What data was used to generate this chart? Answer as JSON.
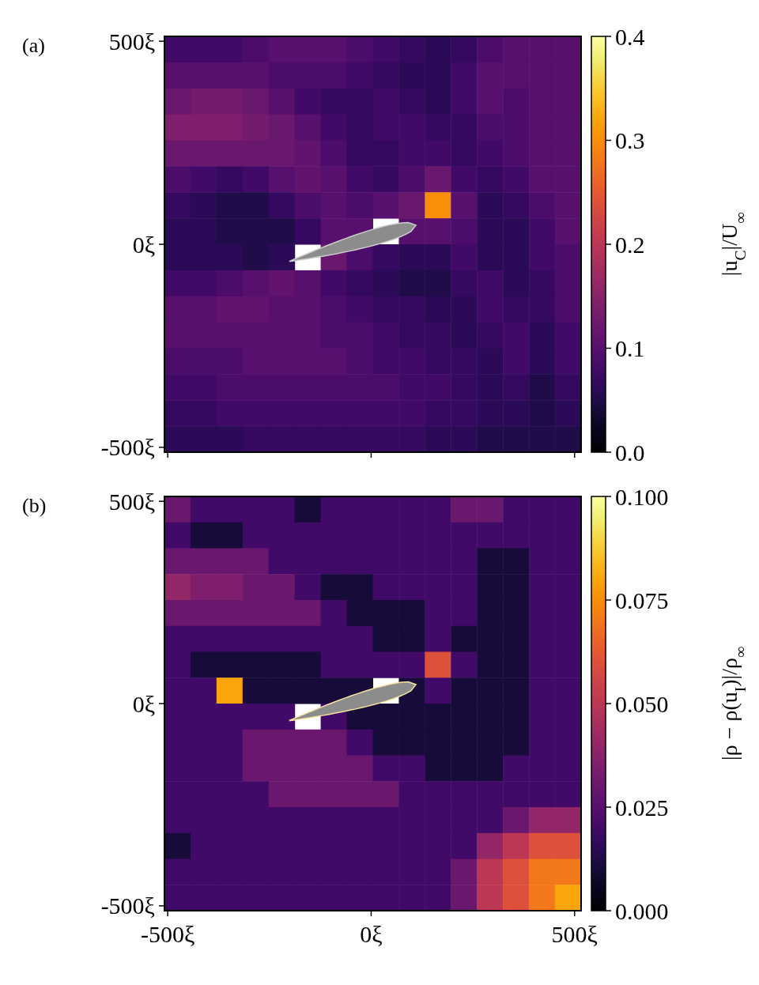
{
  "chart_data": [
    {
      "type": "heatmap",
      "title": "(a)",
      "clabel": "|u$_{C}$|/U$_{∞}$",
      "tick_labels": "y",
      "x": [
        -476,
        -412,
        -348,
        -284,
        -220,
        -156,
        -92,
        -28,
        36,
        100,
        164,
        228,
        292,
        356,
        420,
        484
      ],
      "y": [
        480,
        416,
        352,
        288,
        224,
        160,
        96,
        32,
        -32,
        -96,
        -160,
        -224,
        -288,
        -352,
        -416,
        -480
      ],
      "xlim": [
        -508,
        516
      ],
      "xticks": [
        {
          "value": -500,
          "label": null
        },
        {
          "value": 0,
          "label": null
        },
        {
          "value": 500,
          "label": null
        }
      ],
      "ylim": [
        -512,
        512
      ],
      "yticks": [
        {
          "value": -500,
          "label": "-500ξ"
        },
        {
          "value": 0,
          "label": "0ξ"
        },
        {
          "value": 500,
          "label": "500ξ"
        }
      ],
      "clim": [
        0,
        0.4
      ],
      "cticks": [
        {
          "value": 0,
          "label": "0.0"
        },
        {
          "value": 0.1,
          "label": "0.1"
        },
        {
          "value": 0.2,
          "label": "0.2"
        },
        {
          "value": 0.3,
          "label": "0.3"
        },
        {
          "value": 0.4,
          "label": "0.4"
        }
      ],
      "cells": [
        [
          0.08,
          0.08,
          0.08,
          0.09,
          0.1,
          0.1,
          0.1,
          0.09,
          0.08,
          0.07,
          0.06,
          0.07,
          0.09,
          0.1,
          0.1,
          0.1
        ],
        [
          0.1,
          0.1,
          0.1,
          0.1,
          0.09,
          0.09,
          0.09,
          0.08,
          0.07,
          0.06,
          0.06,
          0.08,
          0.1,
          0.1,
          0.1,
          0.1
        ],
        [
          0.12,
          0.13,
          0.13,
          0.12,
          0.1,
          0.08,
          0.07,
          0.07,
          0.08,
          0.07,
          0.06,
          0.08,
          0.1,
          0.09,
          0.1,
          0.1
        ],
        [
          0.14,
          0.14,
          0.14,
          0.13,
          0.12,
          0.1,
          0.08,
          0.07,
          0.08,
          0.08,
          0.07,
          0.07,
          0.09,
          0.09,
          0.1,
          0.1
        ],
        [
          0.12,
          0.12,
          0.12,
          0.12,
          0.12,
          0.11,
          0.09,
          0.07,
          0.07,
          0.08,
          0.08,
          0.07,
          0.08,
          0.09,
          0.1,
          0.1
        ],
        [
          0.09,
          0.08,
          0.07,
          0.08,
          0.1,
          0.11,
          0.1,
          0.08,
          0.07,
          0.09,
          0.12,
          0.08,
          0.07,
          0.08,
          0.1,
          0.1
        ],
        [
          0.07,
          0.06,
          0.05,
          0.05,
          0.07,
          0.09,
          0.1,
          0.09,
          0.1,
          0.12,
          0.3,
          0.1,
          0.06,
          0.07,
          0.09,
          0.1
        ],
        [
          0.06,
          0.06,
          0.05,
          0.05,
          0.05,
          0.07,
          0.1,
          0.1,
          null,
          0.1,
          0.1,
          0.09,
          0.06,
          0.06,
          0.08,
          0.1
        ],
        [
          0.06,
          0.06,
          0.06,
          0.05,
          0.06,
          null,
          0.12,
          0.09,
          0.07,
          0.06,
          0.06,
          0.08,
          0.06,
          0.06,
          0.08,
          0.09
        ],
        [
          0.08,
          0.08,
          0.09,
          0.1,
          0.11,
          0.1,
          0.08,
          0.07,
          0.06,
          0.05,
          0.05,
          0.07,
          0.08,
          0.06,
          0.07,
          0.09
        ],
        [
          0.1,
          0.1,
          0.11,
          0.11,
          0.1,
          0.1,
          0.09,
          0.08,
          0.07,
          0.07,
          0.06,
          0.06,
          0.08,
          0.07,
          0.07,
          0.09
        ],
        [
          0.1,
          0.1,
          0.1,
          0.1,
          0.1,
          0.1,
          0.09,
          0.09,
          0.08,
          0.07,
          0.07,
          0.06,
          0.07,
          0.08,
          0.06,
          0.08
        ],
        [
          0.09,
          0.09,
          0.09,
          0.1,
          0.1,
          0.1,
          0.1,
          0.09,
          0.08,
          0.08,
          0.07,
          0.07,
          0.06,
          0.08,
          0.06,
          0.08
        ],
        [
          0.08,
          0.08,
          0.09,
          0.09,
          0.09,
          0.09,
          0.09,
          0.09,
          0.09,
          0.08,
          0.08,
          0.07,
          0.06,
          0.07,
          0.05,
          0.07
        ],
        [
          0.07,
          0.07,
          0.08,
          0.08,
          0.08,
          0.08,
          0.08,
          0.08,
          0.08,
          0.08,
          0.07,
          0.07,
          0.06,
          0.06,
          0.05,
          0.06
        ],
        [
          0.06,
          0.06,
          0.06,
          0.07,
          0.07,
          0.07,
          0.07,
          0.07,
          0.07,
          0.07,
          0.06,
          0.06,
          0.05,
          0.05,
          0.05,
          0.05
        ]
      ]
    },
    {
      "type": "heatmap",
      "title": "(b)",
      "clabel": "|ρ − ρ(u$_{I}$)|/ρ$_{∞}$",
      "x": [
        -476,
        -412,
        -348,
        -284,
        -220,
        -156,
        -92,
        -28,
        36,
        100,
        164,
        228,
        292,
        356,
        420,
        484
      ],
      "y": [
        480,
        416,
        352,
        288,
        224,
        160,
        96,
        32,
        -32,
        -96,
        -160,
        -224,
        -288,
        -352,
        -416,
        -480
      ],
      "xlim": [
        -508,
        516
      ],
      "xticks": [
        {
          "value": -500,
          "label": "-500ξ"
        },
        {
          "value": 0,
          "label": "0ξ"
        },
        {
          "value": 500,
          "label": "500ξ"
        }
      ],
      "ylim": [
        -512,
        512
      ],
      "yticks": [
        {
          "value": -500,
          "label": "-500ξ"
        },
        {
          "value": 0,
          "label": "0ξ"
        },
        {
          "value": 500,
          "label": "500ξ"
        }
      ],
      "clim": [
        0,
        0.1
      ],
      "cticks": [
        {
          "value": 0,
          "label": "0.000"
        },
        {
          "value": 0.025,
          "label": "0.025"
        },
        {
          "value": 0.05,
          "label": "0.050"
        },
        {
          "value": 0.075,
          "label": "0.075"
        },
        {
          "value": 0.1,
          "label": "0.100"
        }
      ],
      "cells": [
        [
          0.03,
          0.02,
          0.02,
          0.02,
          0.02,
          0.01,
          0.02,
          0.02,
          0.02,
          0.02,
          0.02,
          0.03,
          0.03,
          0.02,
          0.02,
          0.02
        ],
        [
          0.02,
          0.01,
          0.01,
          0.02,
          0.02,
          0.02,
          0.02,
          0.02,
          0.02,
          0.02,
          0.02,
          0.02,
          0.02,
          0.02,
          0.02,
          0.02
        ],
        [
          0.03,
          0.03,
          0.03,
          0.03,
          0.02,
          0.02,
          0.02,
          0.02,
          0.02,
          0.02,
          0.02,
          0.02,
          0.01,
          0.01,
          0.02,
          0.02
        ],
        [
          0.04,
          0.035,
          0.035,
          0.03,
          0.03,
          0.02,
          0.01,
          0.01,
          0.02,
          0.02,
          0.02,
          0.02,
          0.01,
          0.01,
          0.02,
          0.02
        ],
        [
          0.03,
          0.03,
          0.03,
          0.03,
          0.03,
          0.03,
          0.02,
          0.01,
          0.01,
          0.01,
          0.02,
          0.02,
          0.01,
          0.01,
          0.02,
          0.02
        ],
        [
          0.02,
          0.02,
          0.02,
          0.02,
          0.02,
          0.02,
          0.02,
          0.02,
          0.01,
          0.01,
          0.02,
          0.01,
          0.01,
          0.01,
          0.02,
          0.02
        ],
        [
          0.02,
          0.01,
          0.01,
          0.01,
          0.01,
          0.01,
          0.02,
          0.02,
          0.02,
          0.02,
          0.06,
          0.02,
          0.01,
          0.01,
          0.02,
          0.02
        ],
        [
          0.02,
          0.02,
          0.08,
          0.01,
          0.01,
          0.01,
          0.01,
          0.01,
          null,
          0.01,
          0.02,
          0.01,
          0.01,
          0.01,
          0.02,
          0.02
        ],
        [
          0.02,
          0.02,
          0.02,
          0.02,
          0.02,
          null,
          0.02,
          0.01,
          0.01,
          0.01,
          0.01,
          0.01,
          0.01,
          0.01,
          0.02,
          0.02
        ],
        [
          0.02,
          0.02,
          0.02,
          0.03,
          0.03,
          0.03,
          0.03,
          0.02,
          0.01,
          0.01,
          0.01,
          0.01,
          0.01,
          0.01,
          0.02,
          0.02
        ],
        [
          0.02,
          0.02,
          0.02,
          0.03,
          0.03,
          0.03,
          0.03,
          0.03,
          0.02,
          0.02,
          0.01,
          0.01,
          0.01,
          0.02,
          0.02,
          0.02
        ],
        [
          0.02,
          0.02,
          0.02,
          0.02,
          0.03,
          0.03,
          0.03,
          0.03,
          0.03,
          0.02,
          0.02,
          0.02,
          0.02,
          0.02,
          0.02,
          0.02
        ],
        [
          0.02,
          0.02,
          0.02,
          0.02,
          0.02,
          0.02,
          0.02,
          0.02,
          0.02,
          0.02,
          0.02,
          0.02,
          0.02,
          0.03,
          0.04,
          0.04
        ],
        [
          0.01,
          0.02,
          0.02,
          0.02,
          0.02,
          0.02,
          0.02,
          0.02,
          0.02,
          0.02,
          0.02,
          0.02,
          0.04,
          0.05,
          0.06,
          0.06
        ],
        [
          0.02,
          0.02,
          0.02,
          0.02,
          0.02,
          0.02,
          0.02,
          0.02,
          0.02,
          0.02,
          0.02,
          0.03,
          0.05,
          0.06,
          0.07,
          0.07
        ],
        [
          0.02,
          0.02,
          0.02,
          0.02,
          0.02,
          0.02,
          0.02,
          0.02,
          0.02,
          0.02,
          0.02,
          0.03,
          0.05,
          0.06,
          0.07,
          0.08
        ]
      ]
    }
  ]
}
